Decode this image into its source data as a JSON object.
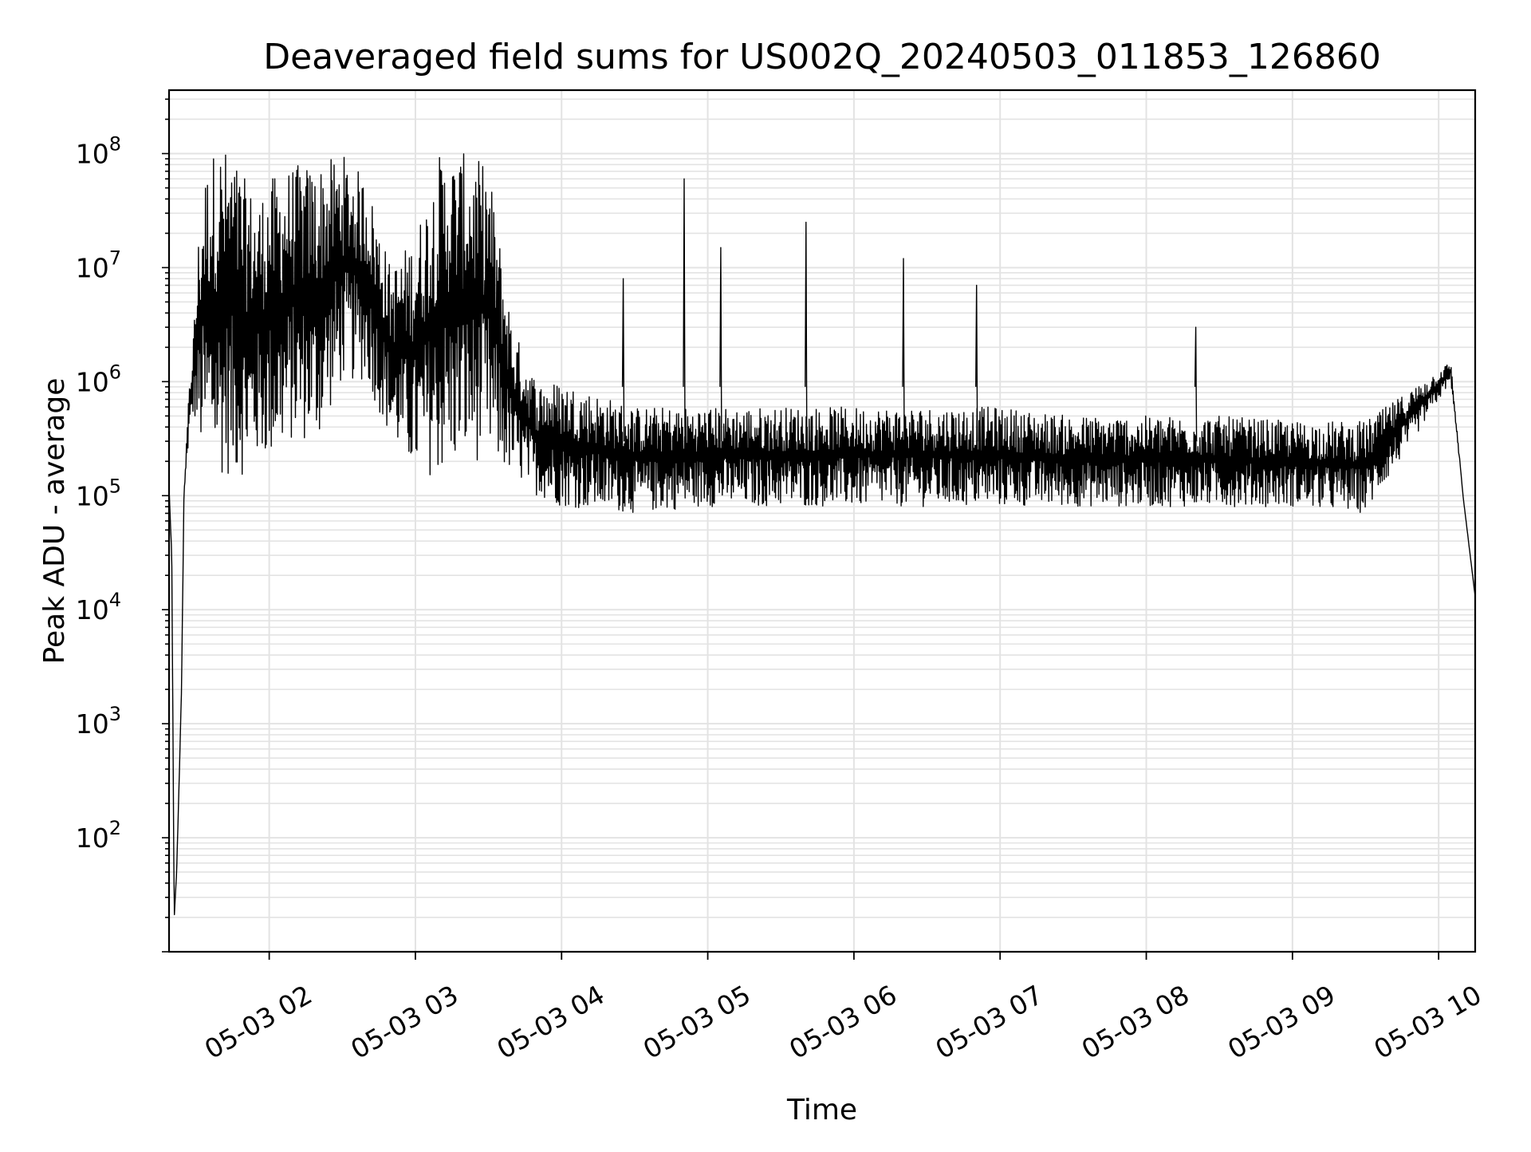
{
  "chart_data": {
    "type": "line",
    "title": "Deaveraged field sums for US002Q_20240503_011853_126860",
    "xlabel": "Time",
    "ylabel": "Peak ADU - average",
    "yscale": "log",
    "xlim": [
      "2024-05-03 01:18:53",
      "2024-05-03 10:15"
    ],
    "ylim": [
      10,
      360000000
    ],
    "grid": true,
    "legend": "none",
    "line_color": "#000000",
    "x_ticks": [
      "05-03 02",
      "05-03 03",
      "05-03 04",
      "05-03 05",
      "05-03 06",
      "05-03 07",
      "05-03 08",
      "05-03 09",
      "05-03 10"
    ],
    "y_ticks": [
      {
        "base": "10",
        "exp": "2",
        "value": 100
      },
      {
        "base": "10",
        "exp": "3",
        "value": 1000
      },
      {
        "base": "10",
        "exp": "4",
        "value": 10000
      },
      {
        "base": "10",
        "exp": "5",
        "value": 100000
      },
      {
        "base": "10",
        "exp": "6",
        "value": 1000000
      },
      {
        "base": "10",
        "exp": "7",
        "value": 10000000
      },
      {
        "base": "10",
        "exp": "8",
        "value": 100000000
      }
    ],
    "series": [
      {
        "values_note_free": true,
        "x": [
          "05-03 01:19",
          "05-03 01:20",
          "05-03 01:21",
          "05-03 01:22",
          "05-03 01:23",
          "05-03 01:24",
          "05-03 01:25",
          "05-03 01:27",
          "05-03 01:29",
          "05-03 01:31",
          "05-03 01:33",
          "05-03 01:36",
          "05-03 01:40",
          "05-03 01:45",
          "05-03 01:50",
          "05-03 01:55",
          "05-03 02:00",
          "05-03 02:10",
          "05-03 02:20",
          "05-03 02:30",
          "05-03 02:40",
          "05-03 02:50",
          "05-03 03:00",
          "05-03 03:10",
          "05-03 03:20",
          "05-03 03:30",
          "05-03 03:40",
          "05-03 03:50",
          "05-03 04:00",
          "05-03 04:30",
          "05-03 05:00",
          "05-03 05:30",
          "05-03 06:00",
          "05-03 06:30",
          "05-03 07:00",
          "05-03 07:30",
          "05-03 08:00",
          "05-03 08:30",
          "05-03 09:00",
          "05-03 09:30",
          "05-03 10:05",
          "05-03 10:10",
          "05-03 10:15"
        ],
        "y": [
          100000,
          30000,
          20,
          50,
          300,
          2000,
          100000,
          800000,
          3000000,
          20000000,
          60000000,
          100000000,
          120000000,
          100000000,
          60000000,
          40000000,
          60000000,
          80000000,
          80000000,
          100000000,
          60000000,
          10000000,
          20000000,
          100000000,
          100000000,
          80000000,
          3000000,
          1000000,
          1000000,
          600000,
          600000,
          600000,
          600000,
          600000,
          600000,
          500000,
          500000,
          500000,
          450000,
          450000,
          1500000,
          100000,
          13000
        ],
        "y_low": [
          100000,
          30000,
          20,
          50,
          300,
          2000,
          100000,
          300000,
          500000,
          300000,
          200000,
          200000,
          150000,
          150000,
          150000,
          200000,
          200000,
          300000,
          300000,
          1000000,
          1000000,
          300000,
          150000,
          150000,
          200000,
          200000,
          150000,
          100000,
          80000,
          70000,
          80000,
          80000,
          80000,
          80000,
          80000,
          80000,
          80000,
          80000,
          80000,
          70000,
          1000000,
          100000,
          13000
        ],
        "spikes": [
          {
            "x": "05-03 04:50",
            "y": 60000000
          },
          {
            "x": "05-03 05:05",
            "y": 15000000
          },
          {
            "x": "05-03 05:40",
            "y": 25000000
          },
          {
            "x": "05-03 06:20",
            "y": 12000000
          },
          {
            "x": "05-03 06:50",
            "y": 7000000
          },
          {
            "x": "05-03 04:25",
            "y": 8000000
          },
          {
            "x": "05-03 08:20",
            "y": 3000000
          }
        ]
      }
    ]
  }
}
